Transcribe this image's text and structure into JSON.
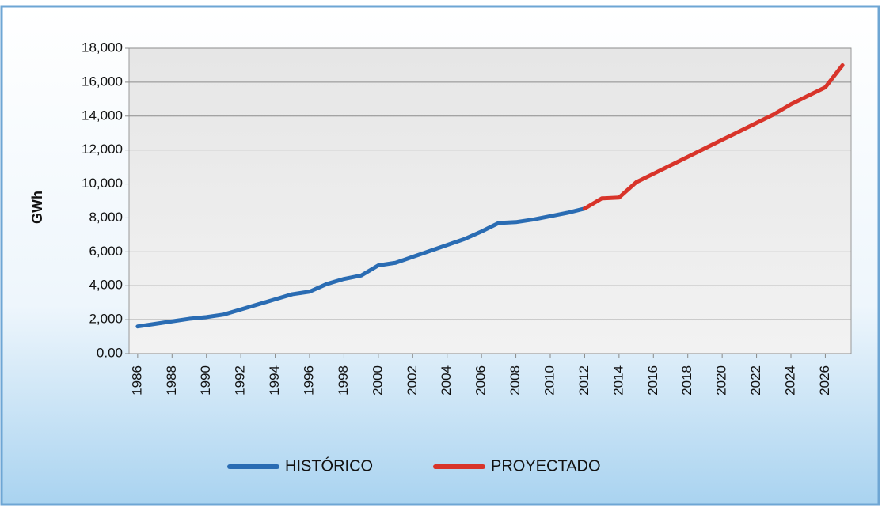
{
  "chart_data": {
    "type": "line",
    "y_label": "GWh",
    "x": [
      1986,
      1987,
      1988,
      1989,
      1990,
      1991,
      1992,
      1993,
      1994,
      1995,
      1996,
      1997,
      1998,
      1999,
      2000,
      2001,
      2002,
      2003,
      2004,
      2005,
      2006,
      2007,
      2008,
      2009,
      2010,
      2011,
      2012,
      2013,
      2014,
      2015,
      2016,
      2017,
      2018,
      2019,
      2020,
      2021,
      2022,
      2023,
      2024,
      2025,
      2026,
      2027
    ],
    "series": [
      {
        "name": "HISTÓRICO",
        "color": "#2a6cb3",
        "values": [
          1600,
          1750,
          1900,
          2050,
          2150,
          2300,
          2600,
          2900,
          3200,
          3500,
          3650,
          4100,
          4400,
          4600,
          5200,
          5350,
          5700,
          6050,
          6400,
          6750,
          7200,
          7700,
          7750,
          7900,
          8100,
          8300,
          8550,
          null,
          null,
          null,
          null,
          null,
          null,
          null,
          null,
          null,
          null,
          null,
          null,
          null,
          null,
          null
        ]
      },
      {
        "name": "PROYECTADO",
        "color": "#d8342a",
        "values": [
          null,
          null,
          null,
          null,
          null,
          null,
          null,
          null,
          null,
          null,
          null,
          null,
          null,
          null,
          null,
          null,
          null,
          null,
          null,
          null,
          null,
          null,
          null,
          null,
          null,
          null,
          8550,
          9150,
          9200,
          10100,
          10600,
          11100,
          11600,
          12100,
          12600,
          13100,
          13600,
          14100,
          14700,
          15200,
          15700,
          17000
        ]
      }
    ],
    "xlim": [
      1985.5,
      2027.5
    ],
    "xticks": [
      1986,
      1988,
      1990,
      1992,
      1994,
      1996,
      1998,
      2000,
      2002,
      2004,
      2006,
      2008,
      2010,
      2012,
      2014,
      2016,
      2018,
      2020,
      2022,
      2024,
      2026
    ],
    "ylim": [
      0,
      18000
    ],
    "yticks": [
      {
        "value": 0,
        "label": "0.00"
      },
      {
        "value": 2000,
        "label": "2,000"
      },
      {
        "value": 4000,
        "label": "4,000"
      },
      {
        "value": 6000,
        "label": "6,000"
      },
      {
        "value": 8000,
        "label": "8,000"
      },
      {
        "value": 10000,
        "label": "10,000"
      },
      {
        "value": 12000,
        "label": "12,000"
      },
      {
        "value": 14000,
        "label": "14,000"
      },
      {
        "value": 16000,
        "label": "16,000"
      },
      {
        "value": 18000,
        "label": "18,000"
      }
    ],
    "grid": true,
    "legend": "bottom"
  }
}
